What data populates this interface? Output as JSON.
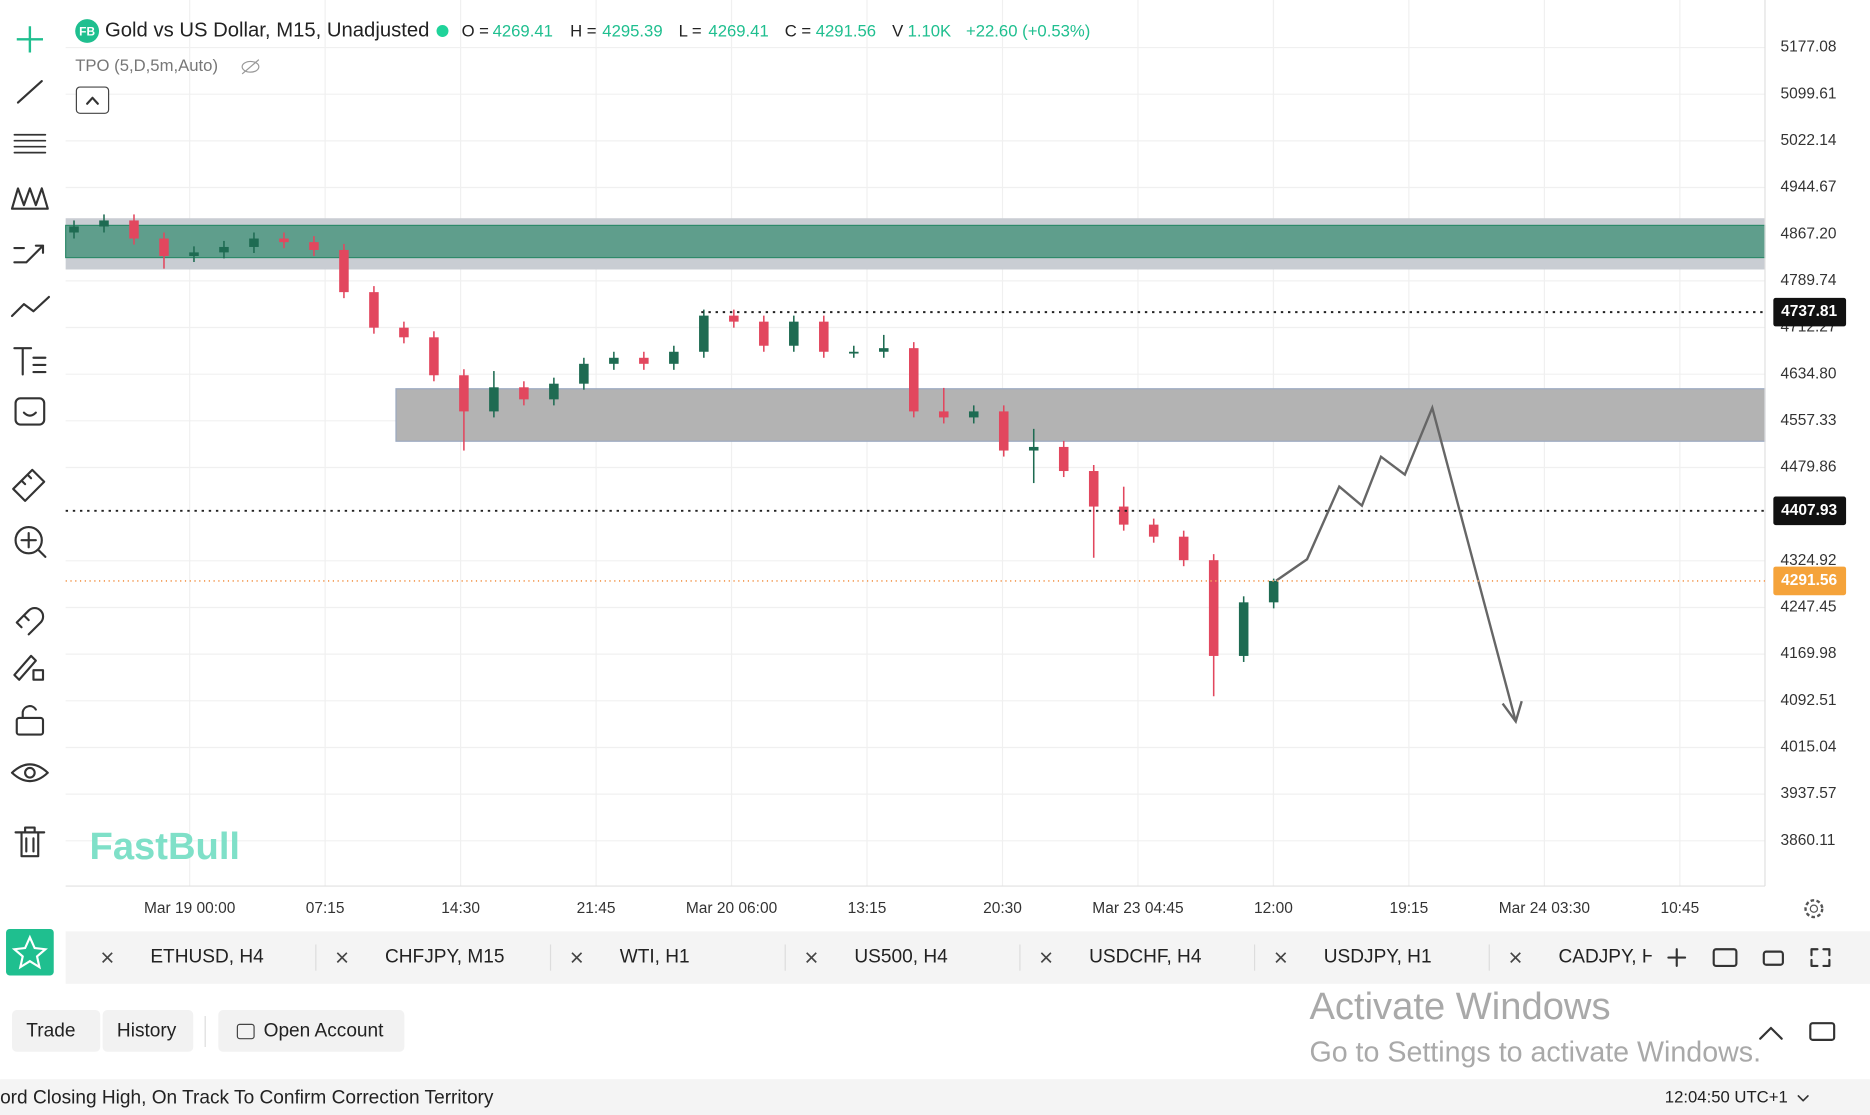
{
  "header": {
    "badge": "FB",
    "title": "Gold vs US Dollar, M15, Unadjusted",
    "quotes": [
      {
        "label": "O =",
        "value": "4269.41"
      },
      {
        "label": "H =",
        "value": "4295.39"
      },
      {
        "label": "L =",
        "value": "4269.41"
      },
      {
        "label": "C =",
        "value": "4291.56"
      },
      {
        "label": "V",
        "value": "1.10K"
      }
    ],
    "change": "+22.60 (+0.53%)",
    "indicator": "TPO (5,D,5m,Auto)"
  },
  "chart_data": {
    "type": "candlestick",
    "categories": [
      "Mar 19 00:00",
      "07:15",
      "14:30",
      "21:45",
      "Mar 20 06:00",
      "13:15",
      "20:30",
      "Mar 23 04:45",
      "12:00",
      "19:15",
      "Mar 24 03:30",
      "10:45"
    ],
    "open": [
      4870,
      4880,
      4890,
      4860,
      4831,
      4837,
      4846,
      4860,
      4854,
      4841,
      4771,
      4712,
      4696,
      4633,
      4573,
      4613,
      4593,
      4619,
      4652,
      4662,
      4652,
      4672,
      4732,
      4722,
      4682,
      4722,
      4672,
      4672,
      4678,
      4573,
      4563,
      4573,
      4508,
      4514,
      4474,
      4415,
      4385,
      4365,
      4326,
      4167,
      4256
    ],
    "high": [
      4890,
      4900,
      4900,
      4870,
      4847,
      4856,
      4870,
      4870,
      4864,
      4851,
      4781,
      4722,
      4706,
      4643,
      4640,
      4623,
      4629,
      4662,
      4672,
      4672,
      4682,
      4742,
      4742,
      4732,
      4732,
      4732,
      4682,
      4700,
      4688,
      4612,
      4583,
      4583,
      4544,
      4524,
      4484,
      4448,
      4395,
      4375,
      4336,
      4266,
      4295.39
    ],
    "low": [
      4860,
      4870,
      4850,
      4810,
      4821,
      4827,
      4836,
      4844,
      4831,
      4761,
      4702,
      4686,
      4623,
      4508,
      4563,
      4583,
      4583,
      4609,
      4642,
      4642,
      4642,
      4662,
      4712,
      4672,
      4672,
      4662,
      4662,
      4662,
      4563,
      4553,
      4553,
      4498,
      4454,
      4464,
      4330,
      4375,
      4355,
      4316,
      4100,
      4157,
      4246
    ],
    "close": [
      4880,
      4890,
      4860,
      4831,
      4837,
      4846,
      4860,
      4854,
      4841,
      4771,
      4712,
      4696,
      4633,
      4573,
      4613,
      4593,
      4619,
      4652,
      4662,
      4652,
      4672,
      4732,
      4722,
      4682,
      4722,
      4672,
      4672,
      4678,
      4573,
      4563,
      4573,
      4508,
      4514,
      4474,
      4415,
      4385,
      4365,
      4326,
      4167,
      4256,
      4291.56
    ],
    "up_color": "#1e6b52",
    "down_color": "#e2475e",
    "ylim": [
      3785,
      5256
    ],
    "yticks": [
      {
        "value": 5177.08,
        "label": "5177.08"
      },
      {
        "value": 5099.61,
        "label": "5099.61"
      },
      {
        "value": 5022.14,
        "label": "5022.14"
      },
      {
        "value": 4944.67,
        "label": "4944.67"
      },
      {
        "value": 4867.2,
        "label": "4867.20"
      },
      {
        "value": 4789.74,
        "label": "4789.74"
      },
      {
        "value": 4712.27,
        "label": "4712.27"
      },
      {
        "value": 4634.8,
        "label": "4634.80"
      },
      {
        "value": 4557.33,
        "label": "4557.33"
      },
      {
        "value": 4479.86,
        "label": "4479.86"
      },
      {
        "value": 4324.92,
        "label": "4324.92"
      },
      {
        "value": 4247.45,
        "label": "4247.45"
      },
      {
        "value": 4169.98,
        "label": "4169.98"
      },
      {
        "value": 4092.51,
        "label": "4092.51"
      },
      {
        "value": 4015.04,
        "label": "4015.04"
      },
      {
        "value": 3937.57,
        "label": "3937.57"
      },
      {
        "value": 3860.11,
        "label": "3860.11"
      }
    ],
    "price_lines": [
      4737.81,
      4407.93,
      4291.56
    ],
    "grid": true
  },
  "watermark": "FastBull",
  "tabs": [
    "ETHUSD, H4",
    "CHFJPY, M15",
    "WTI, H1",
    "US500, H4",
    "USDCHF, H4",
    "USDJPY, H1",
    "CADJPY, H"
  ],
  "buttons": [
    "Trade",
    "History",
    "Open Account"
  ],
  "windows_notice": {
    "title": "Activate Windows",
    "subtitle": "Go to Settings to activate Windows."
  },
  "ticker": "ord Closing High, On Track To Confirm Correction Territory",
  "clock": "12:04:50 UTC+1"
}
